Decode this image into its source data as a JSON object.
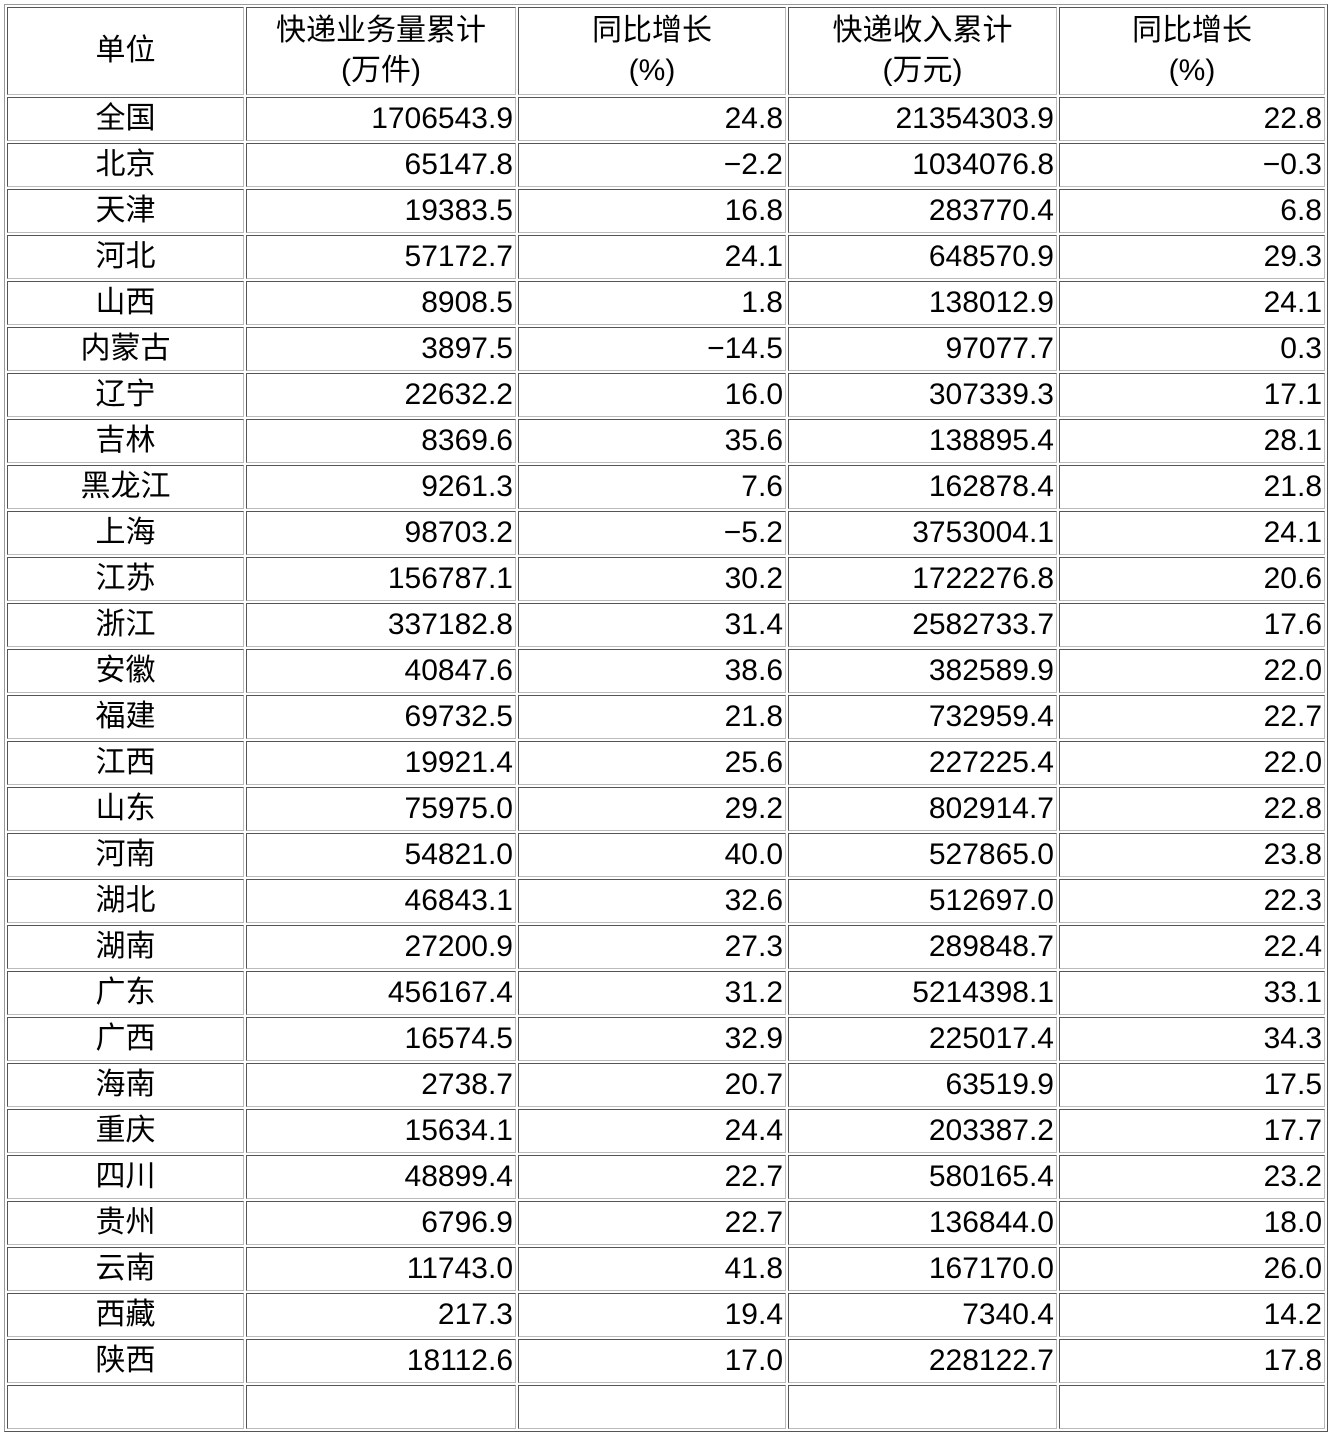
{
  "headers": [
    {
      "line1": "单位",
      "line2": ""
    },
    {
      "line1": "快递业务量累计",
      "line2": "(万件)"
    },
    {
      "line1": "同比增长",
      "line2": "(%)"
    },
    {
      "line1": "快递收入累计",
      "line2": "(万元)"
    },
    {
      "line1": "同比增长",
      "line2": "(%)"
    }
  ],
  "rows": [
    [
      "全国",
      "1706543.9",
      "24.8",
      "21354303.9",
      "22.8"
    ],
    [
      "北京",
      "65147.8",
      "−2.2",
      "1034076.8",
      "−0.3"
    ],
    [
      "天津",
      "19383.5",
      "16.8",
      "283770.4",
      "6.8"
    ],
    [
      "河北",
      "57172.7",
      "24.1",
      "648570.9",
      "29.3"
    ],
    [
      "山西",
      "8908.5",
      "1.8",
      "138012.9",
      "24.1"
    ],
    [
      "内蒙古",
      "3897.5",
      "−14.5",
      "97077.7",
      "0.3"
    ],
    [
      "辽宁",
      "22632.2",
      "16.0",
      "307339.3",
      "17.1"
    ],
    [
      "吉林",
      "8369.6",
      "35.6",
      "138895.4",
      "28.1"
    ],
    [
      "黑龙江",
      "9261.3",
      "7.6",
      "162878.4",
      "21.8"
    ],
    [
      "上海",
      "98703.2",
      "−5.2",
      "3753004.1",
      "24.1"
    ],
    [
      "江苏",
      "156787.1",
      "30.2",
      "1722276.8",
      "20.6"
    ],
    [
      "浙江",
      "337182.8",
      "31.4",
      "2582733.7",
      "17.6"
    ],
    [
      "安徽",
      "40847.6",
      "38.6",
      "382589.9",
      "22.0"
    ],
    [
      "福建",
      "69732.5",
      "21.8",
      "732959.4",
      "22.7"
    ],
    [
      "江西",
      "19921.4",
      "25.6",
      "227225.4",
      "22.0"
    ],
    [
      "山东",
      "75975.0",
      "29.2",
      "802914.7",
      "22.8"
    ],
    [
      "河南",
      "54821.0",
      "40.0",
      "527865.0",
      "23.8"
    ],
    [
      "湖北",
      "46843.1",
      "32.6",
      "512697.0",
      "22.3"
    ],
    [
      "湖南",
      "27200.9",
      "27.3",
      "289848.7",
      "22.4"
    ],
    [
      "广东",
      "456167.4",
      "31.2",
      "5214398.1",
      "33.1"
    ],
    [
      "广西",
      "16574.5",
      "32.9",
      "225017.4",
      "34.3"
    ],
    [
      "海南",
      "2738.7",
      "20.7",
      "63519.9",
      "17.5"
    ],
    [
      "重庆",
      "15634.1",
      "24.4",
      "203387.2",
      "17.7"
    ],
    [
      "四川",
      "48899.4",
      "22.7",
      "580165.4",
      "23.2"
    ],
    [
      "贵州",
      "6796.9",
      "22.7",
      "136844.0",
      "18.0"
    ],
    [
      "云南",
      "11743.0",
      "41.8",
      "167170.0",
      "26.0"
    ],
    [
      "西藏",
      "217.3",
      "19.4",
      "7340.4",
      "14.2"
    ],
    [
      "陕西",
      "18112.6",
      "17.0",
      "228122.7",
      "17.8"
    ]
  ]
}
